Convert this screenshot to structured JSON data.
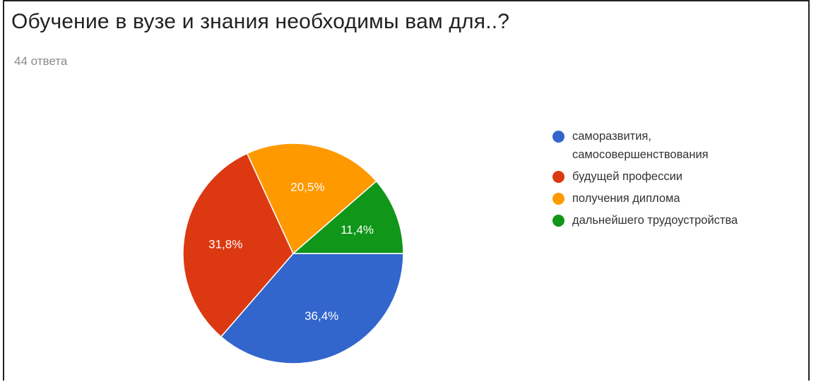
{
  "header": {
    "title": "Обучение в вузе и знания необходимы вам для..?",
    "response_count": "44 ответа"
  },
  "chart_data": {
    "type": "pie",
    "title": "Обучение в вузе и знания необходимы вам для..?",
    "subtitle": "44 ответа",
    "legend_position": "right",
    "slices": [
      {
        "label": "саморазвития, самосовершенствования",
        "value": 36.4,
        "display": "36,4%",
        "color": "#3366cc"
      },
      {
        "label": "будущей профессии",
        "value": 31.8,
        "display": "31,8%",
        "color": "#dc3912"
      },
      {
        "label": "получения диплома",
        "value": 20.5,
        "display": "20,5%",
        "color": "#ff9900"
      },
      {
        "label": "дальнейшего трудоустройства",
        "value": 11.4,
        "display": "11,4%",
        "color": "#109618"
      }
    ]
  }
}
